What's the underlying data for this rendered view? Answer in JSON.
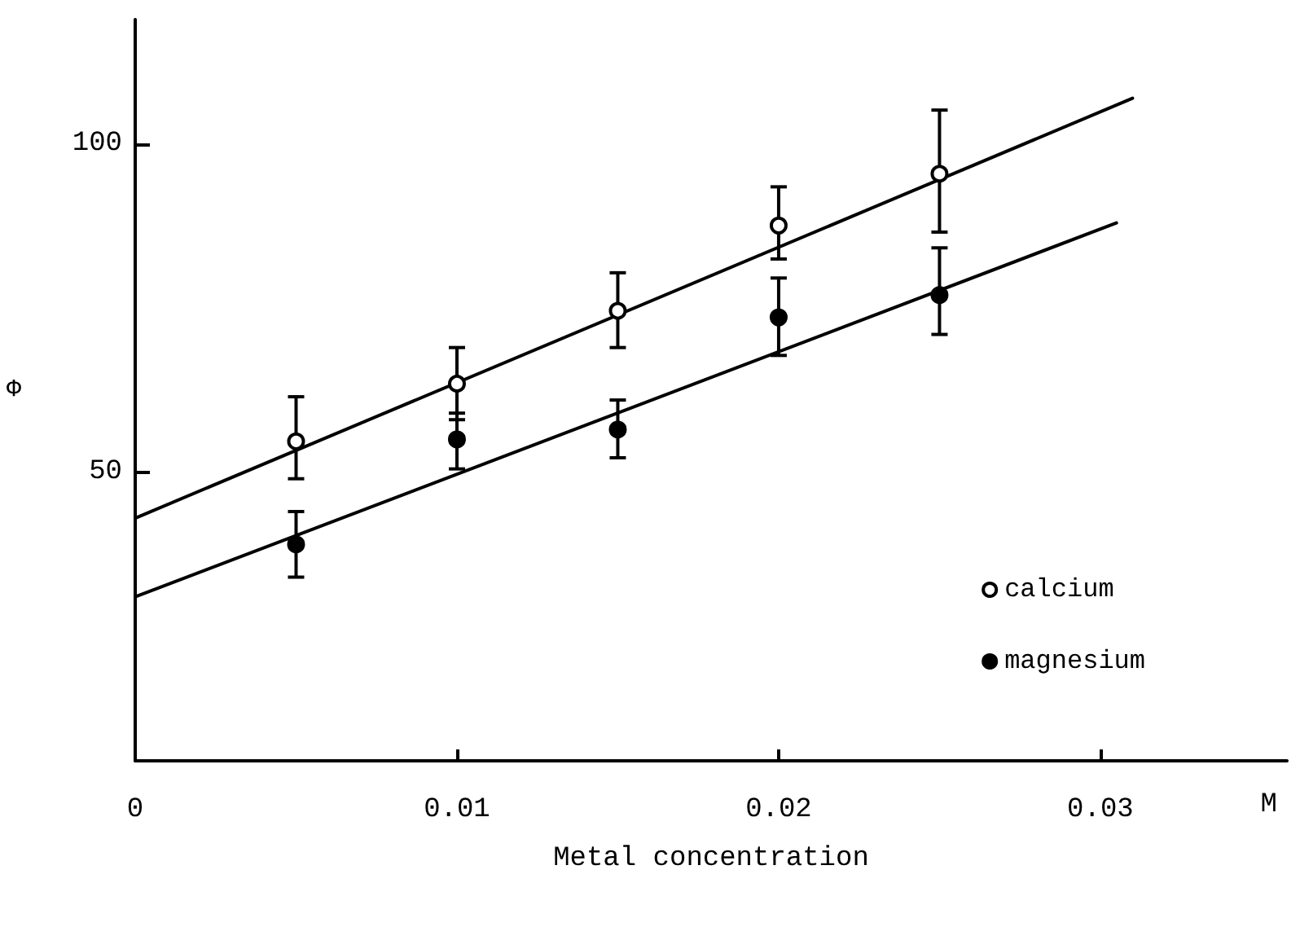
{
  "chart_data": {
    "type": "scatter",
    "xlabel": "Metal concentration",
    "ylabel": "Φ",
    "annotations": [
      "M"
    ],
    "xlim": [
      0,
      0.0358
    ],
    "xticks": [
      0,
      0.01,
      0.02,
      0.03
    ],
    "ylim": [
      6,
      119
    ],
    "yticks": [
      50,
      100
    ],
    "grid": false,
    "legend": "bottom right",
    "series": [
      {
        "name": "calcium",
        "color": "#000000",
        "marker": "open circle",
        "x": [
          0.005,
          0.01,
          0.015,
          0.02,
          0.025
        ],
        "values": [
          54.7,
          63.5,
          74.6,
          87.6,
          95.5
        ],
        "errors": [
          [
            49,
            61.5
          ],
          [
            58,
            69
          ],
          [
            69,
            80.4
          ],
          [
            82.5,
            93.5
          ],
          [
            86.6,
            105.2
          ]
        ]
      },
      {
        "name": "magnesium",
        "color": "#000000",
        "marker": "circle",
        "x": [
          0.005,
          0.01,
          0.015,
          0.02,
          0.025
        ],
        "values": [
          39,
          55,
          56.5,
          73.6,
          77
        ],
        "errors": [
          [
            34,
            44
          ],
          [
            50.5,
            59
          ],
          [
            52.2,
            61
          ],
          [
            67.8,
            79.6
          ],
          [
            71,
            84.2
          ]
        ]
      },
      {
        "type": "line",
        "color": "#000000",
        "marker": "none",
        "x": [
          0,
          0.031
        ],
        "values": [
          43,
          107
        ]
      },
      {
        "type": "line",
        "color": "#000000",
        "marker": "none",
        "x": [
          0,
          0.0305
        ],
        "values": [
          31,
          88
        ]
      }
    ]
  }
}
